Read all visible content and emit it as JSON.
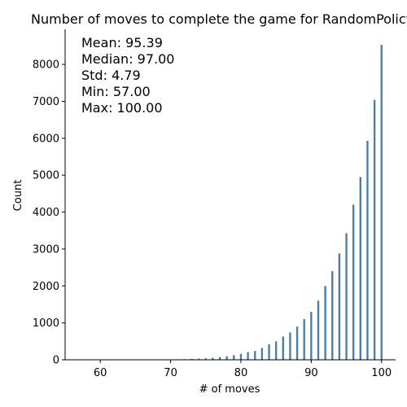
{
  "chart_data": {
    "type": "bar",
    "title": "Number of moves to complete the game for RandomPolicy",
    "xlabel": "# of moves",
    "ylabel": "Count",
    "xlim": [
      55,
      102
    ],
    "ylim": [
      0,
      8950
    ],
    "xticks": [
      60,
      70,
      80,
      90,
      100
    ],
    "yticks": [
      0,
      1000,
      2000,
      3000,
      4000,
      5000,
      6000,
      7000,
      8000
    ],
    "grid": false,
    "bar_color": "#4c7fa8",
    "stats": [
      "Mean: 95.39",
      "Median: 97.00",
      "Std: 4.79",
      "Min: 57.00",
      "Max: 100.00"
    ],
    "x": [
      57,
      58,
      59,
      60,
      61,
      62,
      63,
      64,
      65,
      66,
      67,
      68,
      69,
      70,
      71,
      72,
      73,
      74,
      75,
      76,
      77,
      78,
      79,
      80,
      81,
      82,
      83,
      84,
      85,
      86,
      87,
      88,
      89,
      90,
      91,
      92,
      93,
      94,
      95,
      96,
      97,
      98,
      99,
      100
    ],
    "values": [
      1,
      0,
      0,
      1,
      0,
      1,
      0,
      1,
      2,
      3,
      4,
      6,
      7,
      10,
      14,
      18,
      24,
      32,
      42,
      56,
      75,
      95,
      125,
      160,
      210,
      240,
      320,
      420,
      500,
      630,
      740,
      900,
      1100,
      1300,
      1600,
      2000,
      2400,
      2880,
      3430,
      4200,
      4950,
      5930,
      7040,
      8530
    ]
  }
}
